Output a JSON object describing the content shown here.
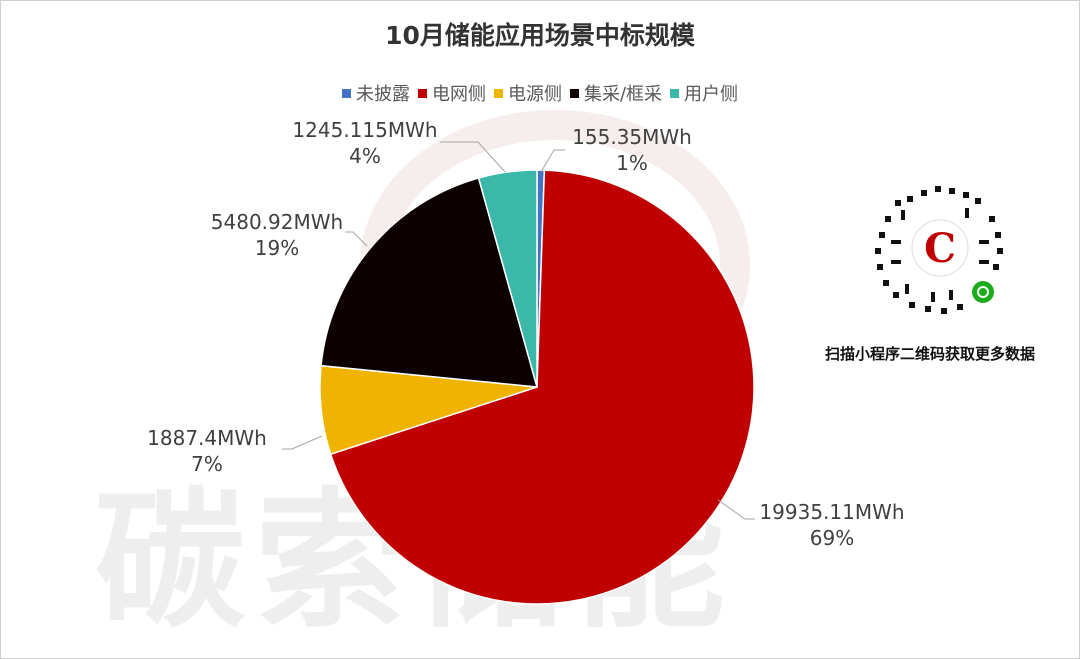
{
  "chart_data": {
    "type": "pie",
    "title": "10月储能应用场景中标规模",
    "categories": [
      "未披露",
      "电网侧",
      "电源侧",
      "集采/框采",
      "用户侧"
    ],
    "values": [
      155.35,
      19935.11,
      1887.4,
      5480.92,
      1245.115
    ],
    "unit": "MWh",
    "data_labels": [
      {
        "value": "155.35MWh",
        "percent": "1%"
      },
      {
        "value": "19935.11MWh",
        "percent": "69%"
      },
      {
        "value": "1887.4MWh",
        "percent": "7%"
      },
      {
        "value": "5480.92MWh",
        "percent": "19%"
      },
      {
        "value": "1245.115MWh",
        "percent": "4%"
      }
    ],
    "colors": [
      "#4472c4",
      "#c00000",
      "#f0b400",
      "#0d0000",
      "#3cb8aa"
    ],
    "legend": {
      "position": "top"
    }
  },
  "watermark": {
    "text": "碳索储能"
  },
  "qr": {
    "caption": "扫描小程序二维码获取更多数据",
    "icon": "qr-code-icon"
  }
}
